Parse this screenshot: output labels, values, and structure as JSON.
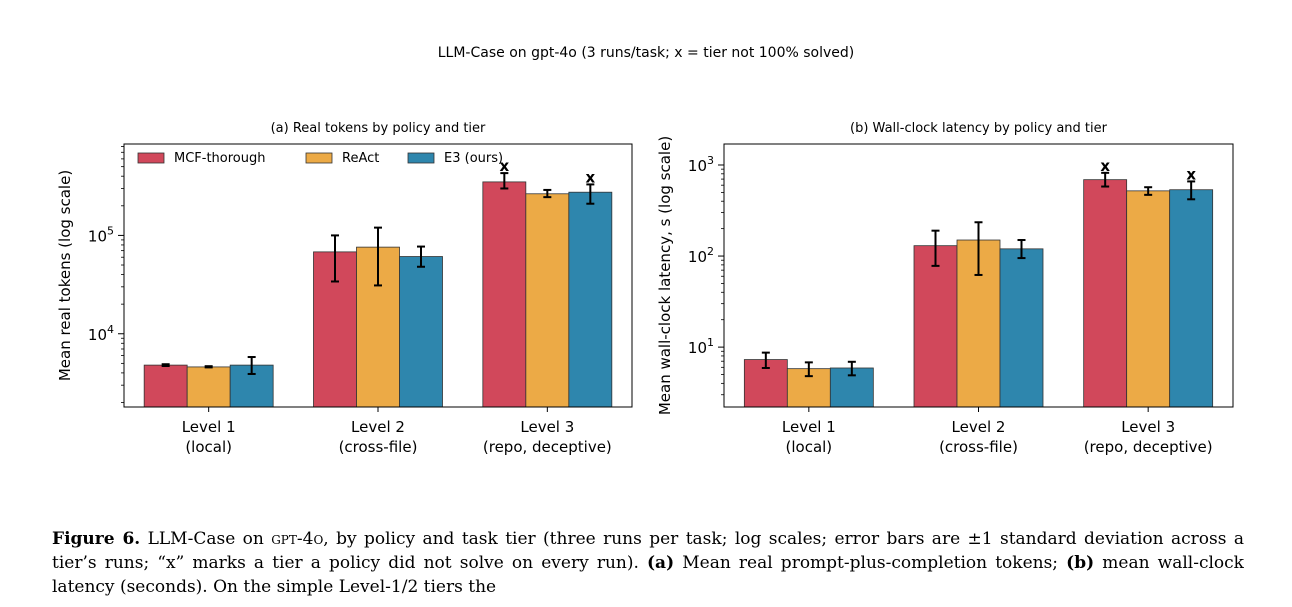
{
  "suptitle": "LLM-Case on gpt-4o (3 runs/task; x = tier not 100% solved)",
  "series_colors": [
    "#d1485b",
    "#ecaa46",
    "#2e86ad"
  ],
  "chart_data": [
    {
      "type": "bar",
      "title": "(a) Real tokens by policy and tier",
      "ylabel": "Mean real tokens (log scale)",
      "xlabel": "",
      "yscale": "log",
      "ylim": [
        1800,
        850000
      ],
      "yticks": [
        {
          "value": 10000,
          "base": "10",
          "exp": "4"
        },
        {
          "value": 100000,
          "base": "10",
          "exp": "5"
        }
      ],
      "categories": [
        [
          "Level 1",
          "(local)"
        ],
        [
          "Level 2",
          "(cross-file)"
        ],
        [
          "Level 3",
          "(repo, deceptive)"
        ]
      ],
      "legend": "top-left",
      "grid": false,
      "series": [
        {
          "name": "MCF-thorough",
          "values": [
            4800,
            68000,
            350000
          ],
          "err_low": [
            4700,
            34000,
            300000
          ],
          "err_high": [
            4900,
            100000,
            430000
          ],
          "unsolved": [
            false,
            false,
            true
          ]
        },
        {
          "name": "ReAct",
          "values": [
            4600,
            76000,
            265000
          ],
          "err_low": [
            4550,
            31000,
            245000
          ],
          "err_high": [
            4680,
            120000,
            290000
          ],
          "unsolved": [
            false,
            false,
            false
          ]
        },
        {
          "name": "E3 (ours)",
          "values": [
            4800,
            61000,
            275000
          ],
          "err_low": [
            3900,
            48000,
            210000
          ],
          "err_high": [
            5800,
            77000,
            330000
          ],
          "unsolved": [
            false,
            false,
            true
          ]
        }
      ]
    },
    {
      "type": "bar",
      "title": "(b) Wall-clock latency by policy and tier",
      "ylabel": "Mean wall-clock latency, s (log scale)",
      "xlabel": "",
      "yscale": "log",
      "ylim": [
        2.2,
        1700
      ],
      "yticks": [
        {
          "value": 10,
          "base": "10",
          "exp": "1"
        },
        {
          "value": 100,
          "base": "10",
          "exp": "2"
        },
        {
          "value": 1000,
          "base": "10",
          "exp": "3"
        }
      ],
      "categories": [
        [
          "Level 1",
          "(local)"
        ],
        [
          "Level 2",
          "(cross-file)"
        ],
        [
          "Level 3",
          "(repo, deceptive)"
        ]
      ],
      "grid": false,
      "series": [
        {
          "name": "MCF-thorough",
          "values": [
            7.3,
            130,
            690
          ],
          "err_low": [
            5.9,
            78,
            580
          ],
          "err_high": [
            8.7,
            190,
            820
          ],
          "unsolved": [
            false,
            false,
            true
          ]
        },
        {
          "name": "ReAct",
          "values": [
            5.8,
            150,
            520
          ],
          "err_low": [
            4.8,
            62,
            470
          ],
          "err_high": [
            6.8,
            235,
            570
          ],
          "unsolved": [
            false,
            false,
            false
          ]
        },
        {
          "name": "E3 (ours)",
          "values": [
            5.9,
            120,
            535
          ],
          "err_low": [
            4.9,
            95,
            420
          ],
          "err_high": [
            6.9,
            150,
            660
          ],
          "unsolved": [
            false,
            false,
            true
          ]
        }
      ]
    }
  ],
  "caption": {
    "fig_label": "Figure 6.",
    "text1": " LLM-Case on ",
    "model": "gpt-4o",
    "text2": ", by policy and task tier (three runs per task; log scales; error bars are ±1 standard deviation across a tier’s runs; “x” marks a tier a policy did not solve on every run). ",
    "a_label": "(a)",
    "text3": " Mean real prompt-plus-completion tokens; ",
    "b_label": "(b)",
    "text4": " mean wall-clock latency (seconds). On the simple Level-1/2 tiers the"
  }
}
